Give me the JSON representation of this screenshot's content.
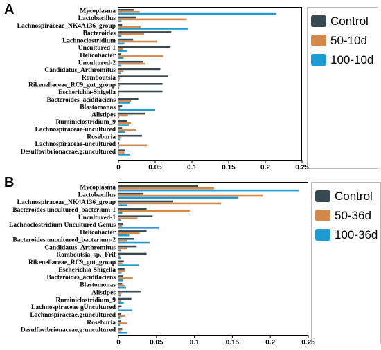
{
  "colors": {
    "control": "#374a52",
    "orange": "#d4884a",
    "blue": "#1e9bd1"
  },
  "chart_data": [
    {
      "panel": "A",
      "type": "bar",
      "orientation": "horizontal",
      "categories": [
        "Mycoplasma",
        "Lactobacillus",
        "Lachnospiraceae_NK4A136_group",
        "Bacteroides",
        "Lachnoclostridium",
        "Uncultured-1",
        "Helicobacter",
        "Uncultured-2",
        "Candidatus_Arthromitus",
        "Romboutsia",
        "Rikenellaceae_RC9_gut_group",
        "Escherichia-Shigella",
        "Bacteroides_acidifaciens",
        "Blastomonas",
        "Alistipes",
        "Ruminiclostridium_9",
        "Lachnospiraceae-uncultured",
        "Roseburia",
        "Lachnospiraceae-uncultured",
        "Desulfovibrionaceae,g:uncultured"
      ],
      "series": [
        {
          "name": "Control",
          "color": "#374a52",
          "values": [
            0.021,
            0.024,
            0.005,
            0.072,
            0.02,
            0.071,
            0.003,
            0.033,
            0.057,
            0.068,
            0.06,
            0.06,
            0.027,
            0.005,
            0.036,
            0.012,
            0.005,
            0.032,
            0.001,
            0.009
          ]
        },
        {
          "name": "50-10d",
          "color": "#d4884a",
          "values": [
            0.029,
            0.093,
            0.03,
            0.035,
            0.052,
            0.006,
            0.061,
            0.037,
            0.007,
            0.002,
            0.002,
            0.001,
            0.017,
            0.002,
            0.013,
            0.017,
            0.024,
            0.004,
            0.039,
            0.008
          ]
        },
        {
          "name": "100-10d",
          "color": "#1e9bd1",
          "values": [
            0.215,
            0.004,
            0.095,
            0.004,
            0.008,
            0.012,
            0.007,
            0.004,
            0.003,
            0.001,
            0.001,
            0.001,
            0.016,
            0.05,
            0.001,
            0.014,
            0.009,
            0.002,
            0.001,
            0.016
          ]
        }
      ],
      "xticks": [
        "0",
        "0.05",
        "0.1",
        "0.15",
        "0.2",
        "0.25"
      ],
      "xlim": [
        0,
        0.25
      ],
      "legend": [
        "Control",
        "50-10d",
        "100-10d"
      ]
    },
    {
      "panel": "B",
      "type": "bar",
      "orientation": "horizontal",
      "categories": [
        "Mycoplasma",
        "Lactobacillus",
        "Lachnospiraceae_NK4A136_group",
        "Bacteroides uncultured_bacterium-1",
        "Uncultured-1",
        "Lachnoclostridium Uncultured Genus",
        "Helicobacter",
        "Bacteroides uncultured_bacterium-2",
        "Candidatus_Arthromitus",
        "Romboutsia_sp._Frif",
        "Rikenellaceae_RC9_gut_group",
        "Escherichia-Shigella",
        "Bacteroides_acidifaciens",
        "Blastomonas",
        "Alistipes",
        "Ruminiclostridium_9",
        "Lachnospiraceae gUncultured",
        "Lachnospiraceae,g:uncultured",
        "Roseburia",
        "Desulfovibrionaceae,g:uncultured"
      ],
      "series": [
        {
          "name": "Control",
          "color": "#374a52",
          "values": [
            0.105,
            0.033,
            0.072,
            0.037,
            0.045,
            0.006,
            0.037,
            0.021,
            0.024,
            0.037,
            0.007,
            0.008,
            0.006,
            0.005,
            0.03,
            0.017,
            0.004,
            0.003,
            0.003,
            0.005
          ]
        },
        {
          "name": "50-36d",
          "color": "#d4884a",
          "values": [
            0.126,
            0.19,
            0.135,
            0.095,
            0.025,
            0.005,
            0.028,
            0.011,
            0.011,
            0.002,
            0.005,
            0.009,
            0.019,
            0.009,
            0.004,
            0.003,
            0.001,
            0.009,
            0.012,
            0.004
          ]
        },
        {
          "name": "100-36d",
          "color": "#1e9bd1",
          "values": [
            0.238,
            0.158,
            0.012,
            0.005,
            0.003,
            0.053,
            0.014,
            0.041,
            0.003,
            0.003,
            0.027,
            0.004,
            0.006,
            0.01,
            0.003,
            0.007,
            0.018,
            0.002,
            0.002,
            0.012
          ]
        }
      ],
      "xticks": [
        "0",
        "0.05",
        "0.1",
        "0.15",
        "0.2",
        "0.25"
      ],
      "xlim": [
        0,
        0.25
      ],
      "legend": [
        "Control",
        "50-36d",
        "100-36d"
      ]
    }
  ]
}
